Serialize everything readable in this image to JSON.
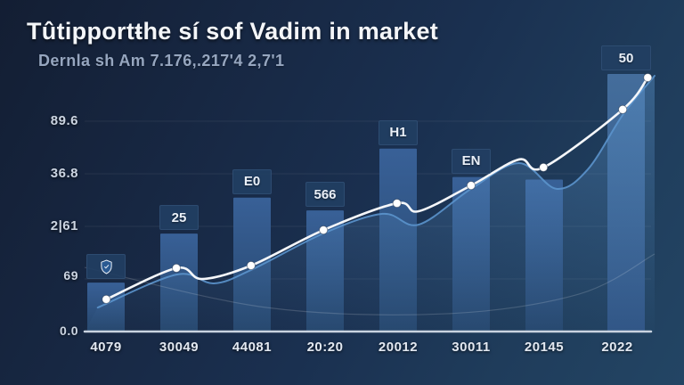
{
  "header": {
    "title": "Tûtipportŧhe sí sof Vadim in market",
    "subtitle": "Dernla sh Am 7.176,.217'4 2,7'1"
  },
  "colors": {
    "background_top": "#131e33",
    "background_bottom": "#234564",
    "bar_top": "#3a639b",
    "bar_bottom": "#27486f",
    "bar_highlight_top": "#46709f",
    "bar_highlight_bottom": "#315687",
    "label_box": "#213e62",
    "trend_line": "#f5f7fa",
    "secondary_line": "#5b94cc",
    "axis_line": "#c9d3e0"
  },
  "chart_data": {
    "type": "combo-bar-line",
    "title": "Tûtipportŧhe sí sof Vadim in market",
    "subtitle": "Dernla sh Am 7.176,.217'4 2,7'1",
    "categories": [
      "4079",
      "30049",
      "44081",
      "20:20",
      "20012",
      "30011",
      "20145",
      "2022"
    ],
    "y_tick_labels": [
      "89.6",
      "36.8",
      "2|61",
      "69",
      "0.0"
    ],
    "ylim": [
      0,
      100
    ],
    "grid": "horizontal-faint",
    "legend": "none",
    "bars": {
      "values": [
        19,
        38,
        52,
        47,
        71,
        60,
        59,
        100
      ],
      "labels": [
        "",
        "25",
        "E0",
        "566",
        "H1",
        "EN",
        "",
        "50"
      ],
      "badge_icon": "shield-icon",
      "badge_index": 0
    },
    "series": [
      {
        "name": "trend-line",
        "type": "line",
        "color": "#f5f7fa",
        "points": [
          {
            "x": 0.038,
            "v": 12.5,
            "dot": true
          },
          {
            "x": 0.161,
            "v": 24.6,
            "dot": true
          },
          {
            "x": 0.206,
            "v": 20.4,
            "dot": false
          },
          {
            "x": 0.292,
            "v": 25.6,
            "dot": true
          },
          {
            "x": 0.419,
            "v": 39.4,
            "dot": true
          },
          {
            "x": 0.548,
            "v": 49.8,
            "dot": true
          },
          {
            "x": 0.586,
            "v": 46.7,
            "dot": false
          },
          {
            "x": 0.678,
            "v": 56.7,
            "dot": true
          },
          {
            "x": 0.762,
            "v": 66.8,
            "dot": false
          },
          {
            "x": 0.805,
            "v": 63.7,
            "dot": true
          },
          {
            "x": 0.944,
            "v": 86.2,
            "dot": true
          },
          {
            "x": 0.988,
            "v": 98.6,
            "dot": true
          }
        ]
      },
      {
        "name": "secondary-area-line",
        "type": "area",
        "color": "#5b94cc",
        "points": [
          {
            "x": 0.023,
            "v": 9.3
          },
          {
            "x": 0.161,
            "v": 22.1
          },
          {
            "x": 0.227,
            "v": 18.7
          },
          {
            "x": 0.292,
            "v": 23.9
          },
          {
            "x": 0.419,
            "v": 38.1
          },
          {
            "x": 0.523,
            "v": 45.7
          },
          {
            "x": 0.586,
            "v": 41.5
          },
          {
            "x": 0.678,
            "v": 55.4
          },
          {
            "x": 0.762,
            "v": 65.4
          },
          {
            "x": 0.828,
            "v": 55.4
          },
          {
            "x": 0.883,
            "v": 63.0
          },
          {
            "x": 0.945,
            "v": 84.4
          },
          {
            "x": 1.0,
            "v": 99.3
          }
        ]
      },
      {
        "name": "faint-background-curve",
        "type": "line",
        "color": "rgba(255,255,255,0.16)",
        "points": [
          {
            "x": 0.0,
            "v": 24.9
          },
          {
            "x": 0.32,
            "v": 9.3
          },
          {
            "x": 0.633,
            "v": 6.9
          },
          {
            "x": 0.867,
            "v": 14.5
          },
          {
            "x": 1.0,
            "v": 30.1
          }
        ]
      }
    ]
  }
}
